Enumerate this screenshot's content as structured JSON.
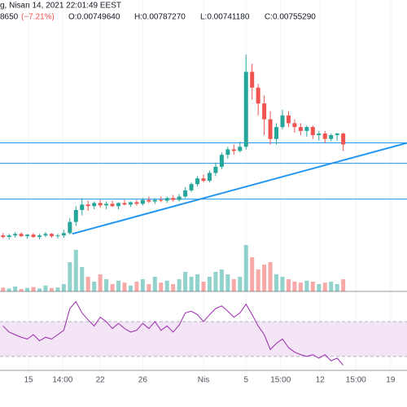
{
  "chart_data": {
    "type": "candlestick",
    "header": {
      "time": "g, Nisan 14, 2021 22:01:49 EEST",
      "left": "8650",
      "change": "(−7.21%)",
      "o": "O:0.00749640",
      "h": "H:0.00787270",
      "l": "L:0.00741180",
      "c": "C:0.00755290"
    },
    "up_color": "#26a69a",
    "down_color": "#ef5350",
    "open": [
      0.00406,
      0.004,
      0.00406,
      0.00412,
      0.00403,
      0.00409,
      0.004,
      0.00406,
      0.00412,
      0.00403,
      0.00406,
      0.00415,
      0.00458,
      0.00504,
      0.00525,
      0.00519,
      0.00531,
      0.00522,
      0.00528,
      0.00519,
      0.00531,
      0.00525,
      0.00534,
      0.00528,
      0.00543,
      0.00537,
      0.00543,
      0.0054,
      0.0055,
      0.00543,
      0.00556,
      0.0058,
      0.00604,
      0.00626,
      0.00617,
      0.00647,
      0.00671,
      0.00717,
      0.00738,
      0.00732,
      0.00748,
      0.01037,
      0.00976,
      0.00915,
      0.00854,
      0.00778,
      0.00824,
      0.00869,
      0.00839,
      0.00824,
      0.00809,
      0.00824,
      0.00793,
      0.00799,
      0.00778,
      0.00793,
      0.00799
    ],
    "high": [
      0.00415,
      0.00412,
      0.00419,
      0.00419,
      0.00412,
      0.00415,
      0.00412,
      0.00419,
      0.00415,
      0.00412,
      0.00428,
      0.00473,
      0.00519,
      0.0055,
      0.0054,
      0.00537,
      0.00543,
      0.00537,
      0.0054,
      0.00534,
      0.00543,
      0.00537,
      0.00543,
      0.0055,
      0.00556,
      0.0055,
      0.00556,
      0.00556,
      0.00562,
      0.00565,
      0.00592,
      0.0061,
      0.00635,
      0.00641,
      0.00656,
      0.00687,
      0.00726,
      0.00748,
      0.00757,
      0.00769,
      0.01104,
      0.01068,
      0.00991,
      0.00946,
      0.00885,
      0.00839,
      0.00891,
      0.00885,
      0.00854,
      0.00839,
      0.0083,
      0.0083,
      0.00809,
      0.00809,
      0.00799,
      0.00802,
      0.00802
    ],
    "low": [
      0.00394,
      0.00391,
      0.00397,
      0.004,
      0.00394,
      0.00397,
      0.00391,
      0.004,
      0.00397,
      0.00394,
      0.00397,
      0.00409,
      0.00443,
      0.00483,
      0.00501,
      0.00507,
      0.00513,
      0.00507,
      0.00516,
      0.00507,
      0.00522,
      0.00516,
      0.00522,
      0.00522,
      0.00531,
      0.00528,
      0.00534,
      0.00531,
      0.00537,
      0.00537,
      0.0055,
      0.00574,
      0.00595,
      0.0061,
      0.0061,
      0.00635,
      0.00662,
      0.00702,
      0.00717,
      0.00726,
      0.00738,
      0.0093,
      0.00869,
      0.00793,
      0.00757,
      0.00757,
      0.00815,
      0.00824,
      0.00802,
      0.00793,
      0.00787,
      0.00778,
      0.00772,
      0.00763,
      0.00769,
      0.00772,
      0.00732
    ],
    "close": [
      0.004,
      0.00406,
      0.00412,
      0.00403,
      0.00409,
      0.004,
      0.00406,
      0.00412,
      0.00403,
      0.00406,
      0.00415,
      0.00458,
      0.00504,
      0.00525,
      0.00519,
      0.00531,
      0.00522,
      0.00528,
      0.00519,
      0.00531,
      0.00525,
      0.00534,
      0.00528,
      0.00543,
      0.00537,
      0.00543,
      0.0054,
      0.0055,
      0.00543,
      0.00556,
      0.0058,
      0.00604,
      0.00626,
      0.00617,
      0.00647,
      0.00671,
      0.00717,
      0.00738,
      0.00732,
      0.00748,
      0.01037,
      0.00976,
      0.00915,
      0.00854,
      0.00778,
      0.00824,
      0.00869,
      0.00839,
      0.00824,
      0.00809,
      0.00824,
      0.00793,
      0.00799,
      0.00778,
      0.00793,
      0.00799,
      0.00757
    ],
    "volume": [
      8,
      6,
      10,
      5,
      7,
      9,
      6,
      12,
      7,
      8,
      15,
      60,
      85,
      50,
      30,
      20,
      35,
      25,
      15,
      22,
      18,
      12,
      20,
      25,
      15,
      30,
      18,
      22,
      15,
      25,
      40,
      30,
      35,
      20,
      30,
      40,
      45,
      35,
      25,
      30,
      95,
      70,
      45,
      55,
      60,
      35,
      30,
      25,
      20,
      18,
      22,
      20,
      15,
      18,
      20,
      15,
      25
    ],
    "volume_ylim": [
      0,
      100
    ],
    "rsi": [
      65,
      58,
      55,
      52,
      50,
      55,
      48,
      52,
      50,
      55,
      60,
      85,
      93,
      80,
      72,
      65,
      75,
      70,
      62,
      68,
      62,
      58,
      60,
      68,
      62,
      70,
      60,
      65,
      58,
      66,
      80,
      82,
      78,
      70,
      78,
      85,
      88,
      82,
      75,
      80,
      90,
      78,
      65,
      55,
      38,
      45,
      50,
      40,
      35,
      32,
      30,
      32,
      28,
      32,
      25,
      28,
      20
    ],
    "rsi_color": "#9c27b0",
    "rsi_ylim": [
      14,
      100
    ],
    "rsi_band": [
      30,
      70
    ],
    "levels": [
      0.00763,
      0.00684,
      0.00546
    ],
    "level_color": "#2196f3",
    "trendline": {
      "x": [
        11.4,
        66.5
      ],
      "y": [
        0.00412,
        0.00763
      ]
    },
    "xlim": [
      -0.5,
      66.5
    ],
    "ylim": [
      0.0019,
      0.0122
    ],
    "xticks": [
      {
        "value": 4.2,
        "label": "15"
      },
      {
        "value": 9.8,
        "label": "14:00"
      },
      {
        "value": 16,
        "label": "22"
      },
      {
        "value": 23,
        "label": "26"
      },
      {
        "value": 33,
        "label": "Nis"
      },
      {
        "value": 40,
        "label": "5"
      },
      {
        "value": 45.7,
        "label": "15:00"
      },
      {
        "value": 52.2,
        "label": "12"
      },
      {
        "value": 58.1,
        "label": "15:00"
      },
      {
        "value": 63.8,
        "label": "19"
      }
    ],
    "grid": true
  }
}
